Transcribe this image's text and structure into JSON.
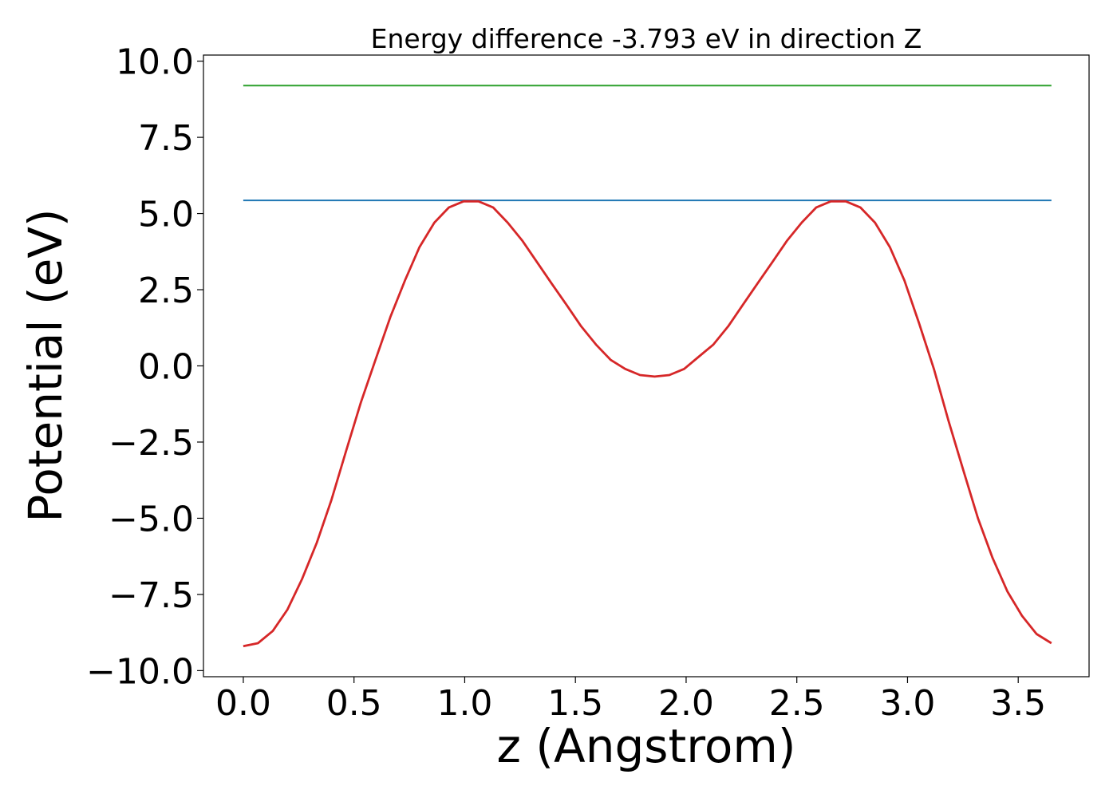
{
  "chart_data": {
    "type": "line",
    "title": "Energy difference -3.793 eV in direction Z",
    "xlabel": "z (Angstrom)",
    "ylabel": "Potential (eV)",
    "xlim": [
      -0.18,
      3.82
    ],
    "ylim": [
      -10.2,
      10.2
    ],
    "x_ticks": [
      {
        "value": 0.0,
        "label": "0.0"
      },
      {
        "value": 0.5,
        "label": "0.5"
      },
      {
        "value": 1.0,
        "label": "1.0"
      },
      {
        "value": 1.5,
        "label": "1.5"
      },
      {
        "value": 2.0,
        "label": "2.0"
      },
      {
        "value": 2.5,
        "label": "2.5"
      },
      {
        "value": 3.0,
        "label": "3.0"
      },
      {
        "value": 3.5,
        "label": "3.5"
      }
    ],
    "y_ticks": [
      {
        "value": 10.0,
        "label": "10.0"
      },
      {
        "value": 7.5,
        "label": "7.5"
      },
      {
        "value": 5.0,
        "label": "5.0"
      },
      {
        "value": 2.5,
        "label": "2.5"
      },
      {
        "value": 0.0,
        "label": "0.0"
      },
      {
        "value": -2.5,
        "label": "−2.5"
      },
      {
        "value": -5.0,
        "label": "−5.0"
      },
      {
        "value": -7.5,
        "label": "−7.5"
      },
      {
        "value": -10.0,
        "label": "−10.0"
      }
    ],
    "grid": false,
    "legend": false,
    "series": [
      {
        "color": "#2ca02c",
        "x": [
          0.0,
          3.65
        ],
        "y": [
          9.2,
          9.2
        ]
      },
      {
        "color": "#1f77b4",
        "x": [
          0.0,
          3.65
        ],
        "y": [
          5.43,
          5.43
        ]
      },
      {
        "color": "#d62728",
        "x": [
          0.0,
          0.066,
          0.133,
          0.199,
          0.265,
          0.332,
          0.398,
          0.464,
          0.531,
          0.597,
          0.664,
          0.73,
          0.796,
          0.863,
          0.929,
          0.995,
          1.062,
          1.128,
          1.194,
          1.261,
          1.327,
          1.393,
          1.46,
          1.526,
          1.593,
          1.659,
          1.725,
          1.792,
          1.858,
          1.924,
          1.991,
          2.057,
          2.123,
          2.19,
          2.256,
          2.322,
          2.389,
          2.455,
          2.522,
          2.588,
          2.654,
          2.721,
          2.787,
          2.853,
          2.92,
          2.986,
          3.052,
          3.119,
          3.185,
          3.251,
          3.318,
          3.384,
          3.451,
          3.517,
          3.583,
          3.65
        ],
        "y": [
          -9.2,
          -9.1,
          -8.7,
          -8.0,
          -7.0,
          -5.8,
          -4.4,
          -2.8,
          -1.2,
          0.2,
          1.6,
          2.8,
          3.9,
          4.7,
          5.2,
          5.4,
          5.4,
          5.2,
          4.7,
          4.1,
          3.4,
          2.7,
          2.0,
          1.3,
          0.7,
          0.2,
          -0.1,
          -0.3,
          -0.35,
          -0.3,
          -0.1,
          0.3,
          0.7,
          1.3,
          2.0,
          2.7,
          3.4,
          4.1,
          4.7,
          5.2,
          5.4,
          5.4,
          5.2,
          4.7,
          3.9,
          2.8,
          1.4,
          -0.1,
          -1.8,
          -3.4,
          -5.0,
          -6.3,
          -7.4,
          -8.2,
          -8.8,
          -9.1
        ]
      }
    ]
  }
}
